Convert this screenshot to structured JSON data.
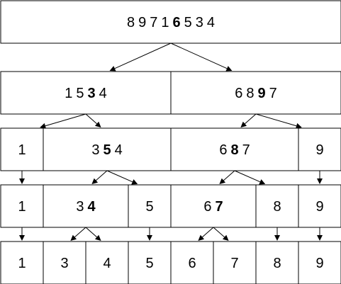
{
  "diagram": {
    "levels": [
      {
        "cells": [
          {
            "digits": [
              {
                "d": "8"
              },
              {
                "d": "9"
              },
              {
                "d": "7"
              },
              {
                "d": "1"
              },
              {
                "d": "6",
                "pivot": true
              },
              {
                "d": "5"
              },
              {
                "d": "3"
              },
              {
                "d": "4"
              }
            ]
          }
        ]
      },
      {
        "cells": [
          {
            "digits": [
              {
                "d": "1"
              },
              {
                "d": "5"
              },
              {
                "d": "3",
                "pivot": true
              },
              {
                "d": "4"
              }
            ]
          },
          {
            "digits": [
              {
                "d": "6"
              },
              {
                "d": "8"
              },
              {
                "d": "9",
                "pivot": true
              },
              {
                "d": "7"
              }
            ]
          }
        ]
      },
      {
        "cells": [
          {
            "digits": [
              {
                "d": "1"
              }
            ]
          },
          {
            "digits": [
              {
                "d": "3"
              },
              {
                "d": "5",
                "pivot": true
              },
              {
                "d": "4"
              }
            ]
          },
          {
            "digits": [
              {
                "d": "6"
              },
              {
                "d": "8",
                "pivot": true
              },
              {
                "d": "7"
              }
            ]
          },
          {
            "digits": [
              {
                "d": "9"
              }
            ]
          }
        ]
      },
      {
        "cells": [
          {
            "digits": [
              {
                "d": "1"
              }
            ]
          },
          {
            "digits": [
              {
                "d": "3"
              },
              {
                "d": "4",
                "pivot": true
              }
            ]
          },
          {
            "digits": [
              {
                "d": "5"
              }
            ]
          },
          {
            "digits": [
              {
                "d": "6"
              },
              {
                "d": "7",
                "pivot": true
              }
            ]
          },
          {
            "digits": [
              {
                "d": "8"
              }
            ]
          },
          {
            "digits": [
              {
                "d": "9"
              }
            ]
          }
        ]
      },
      {
        "cells": [
          {
            "digits": [
              {
                "d": "1"
              }
            ]
          },
          {
            "digits": [
              {
                "d": "3"
              }
            ]
          },
          {
            "digits": [
              {
                "d": "4"
              }
            ]
          },
          {
            "digits": [
              {
                "d": "5"
              }
            ]
          },
          {
            "digits": [
              {
                "d": "6"
              }
            ]
          },
          {
            "digits": [
              {
                "d": "7"
              }
            ]
          },
          {
            "digits": [
              {
                "d": "8"
              }
            ]
          },
          {
            "digits": [
              {
                "d": "9"
              }
            ]
          }
        ]
      }
    ],
    "edges": [
      {
        "from": [
          0,
          0
        ],
        "to": [
          1,
          0
        ]
      },
      {
        "from": [
          0,
          0
        ],
        "to": [
          1,
          1
        ]
      },
      {
        "from": [
          1,
          0
        ],
        "to": [
          2,
          0
        ]
      },
      {
        "from": [
          1,
          0
        ],
        "to": [
          2,
          1
        ]
      },
      {
        "from": [
          1,
          1
        ],
        "to": [
          2,
          2
        ]
      },
      {
        "from": [
          1,
          1
        ],
        "to": [
          2,
          3
        ]
      },
      {
        "from": [
          2,
          0
        ],
        "to": [
          3,
          0
        ]
      },
      {
        "from": [
          2,
          1
        ],
        "to": [
          3,
          1
        ]
      },
      {
        "from": [
          2,
          1
        ],
        "to": [
          3,
          2
        ]
      },
      {
        "from": [
          2,
          2
        ],
        "to": [
          3,
          3
        ]
      },
      {
        "from": [
          2,
          2
        ],
        "to": [
          3,
          4
        ]
      },
      {
        "from": [
          2,
          3
        ],
        "to": [
          3,
          5
        ]
      },
      {
        "from": [
          3,
          0
        ],
        "to": [
          4,
          0
        ]
      },
      {
        "from": [
          3,
          1
        ],
        "to": [
          4,
          1
        ]
      },
      {
        "from": [
          3,
          1
        ],
        "to": [
          4,
          2
        ]
      },
      {
        "from": [
          3,
          2
        ],
        "to": [
          4,
          3
        ]
      },
      {
        "from": [
          3,
          3
        ],
        "to": [
          4,
          4
        ]
      },
      {
        "from": [
          3,
          3
        ],
        "to": [
          4,
          5
        ]
      },
      {
        "from": [
          3,
          4
        ],
        "to": [
          4,
          6
        ]
      },
      {
        "from": [
          3,
          5
        ],
        "to": [
          4,
          7
        ]
      }
    ]
  }
}
